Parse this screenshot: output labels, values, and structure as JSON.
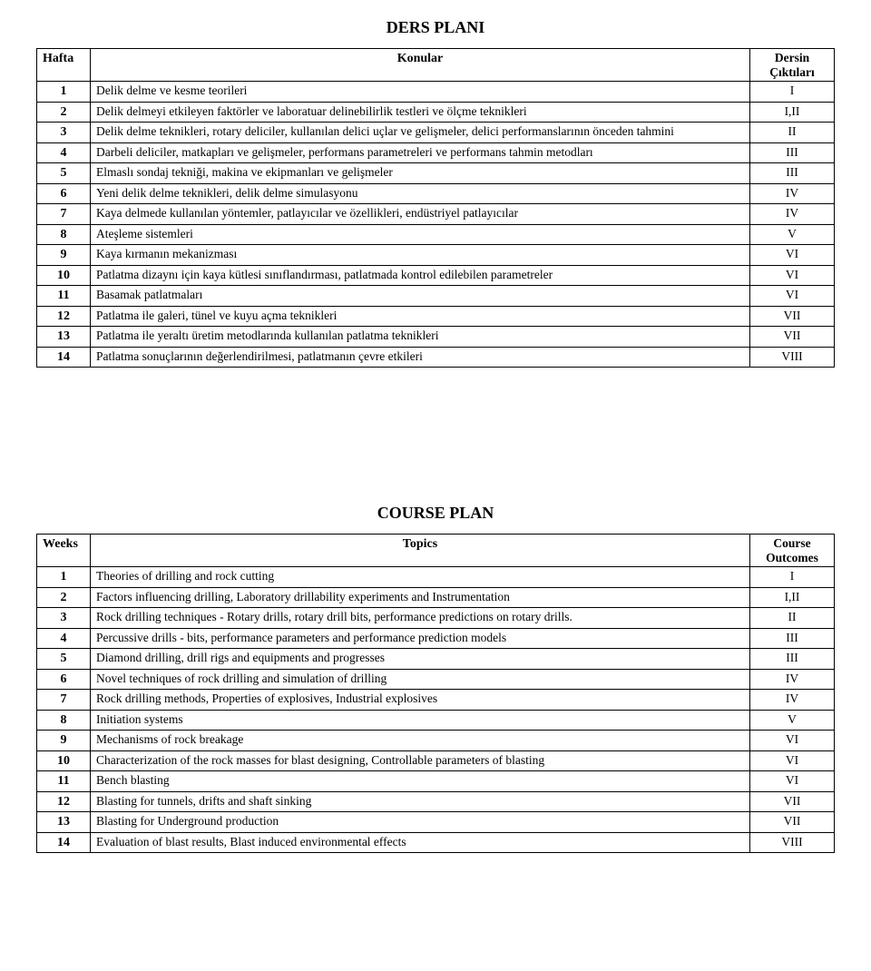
{
  "dersPlani": {
    "title": "DERS PLANI",
    "header": {
      "week": "Hafta",
      "topic": "Konular",
      "outcome_line1": "Dersin",
      "outcome_line2": "Çıktıları"
    },
    "rows": [
      {
        "n": "1",
        "topic": "Delik delme ve kesme teorileri",
        "out": "I"
      },
      {
        "n": "2",
        "topic": "Delik delmeyi etkileyen faktörler ve laboratuar delinebilirlik testleri ve ölçme teknikleri",
        "out": "I,II"
      },
      {
        "n": "3",
        "topic": "Delik delme teknikleri, rotary deliciler, kullanılan delici uçlar ve gelişmeler, delici performanslarının önceden tahmini",
        "out": "II"
      },
      {
        "n": "4",
        "topic": "Darbeli deliciler, matkapları ve gelişmeler, performans parametreleri ve performans tahmin metodları",
        "out": "III"
      },
      {
        "n": "5",
        "topic": "Elmaslı sondaj tekniği, makina ve ekipmanları ve gelişmeler",
        "out": "III"
      },
      {
        "n": "6",
        "topic": "Yeni delik delme teknikleri, delik delme simulasyonu",
        "out": "IV"
      },
      {
        "n": "7",
        "topic": "Kaya delmede kullanılan yöntemler, patlayıcılar ve özellikleri, endüstriyel patlayıcılar",
        "out": "IV"
      },
      {
        "n": "8",
        "topic": "Ateşleme sistemleri",
        "out": "V"
      },
      {
        "n": "9",
        "topic": "Kaya kırmanın mekanizması",
        "out": "VI"
      },
      {
        "n": "10",
        "topic": "Patlatma dizaynı için kaya kütlesi sınıflandırması, patlatmada kontrol edilebilen parametreler",
        "out": "VI"
      },
      {
        "n": "11",
        "topic": "Basamak patlatmaları",
        "out": "VI"
      },
      {
        "n": "12",
        "topic": "Patlatma ile galeri, tünel ve kuyu açma teknikleri",
        "out": "VII"
      },
      {
        "n": "13",
        "topic": "Patlatma ile yeraltı üretim metodlarında kullanılan patlatma teknikleri",
        "out": "VII"
      },
      {
        "n": "14",
        "topic": "Patlatma sonuçlarının değerlendirilmesi, patlatmanın çevre etkileri",
        "out": "VIII"
      }
    ]
  },
  "coursePlan": {
    "title": "COURSE PLAN",
    "header": {
      "week": "Weeks",
      "topic": "Topics",
      "outcome_line1": "Course",
      "outcome_line2": "Outcomes"
    },
    "rows": [
      {
        "n": "1",
        "topic": "Theories of drilling and rock cutting",
        "out": "I"
      },
      {
        "n": "2",
        "topic": "Factors influencing drilling, Laboratory drillability experiments and Instrumentation",
        "out": "I,II"
      },
      {
        "n": "3",
        "topic": "Rock drilling techniques - Rotary drills, rotary drill bits, performance predictions on rotary drills.",
        "out": "II"
      },
      {
        "n": "4",
        "topic": "Percussive drills - bits, performance parameters and performance prediction models",
        "out": "III"
      },
      {
        "n": "5",
        "topic": "Diamond drilling, drill rigs and equipments and progresses",
        "out": "III"
      },
      {
        "n": "6",
        "topic": "Novel techniques of rock drilling and simulation of drilling",
        "out": "IV"
      },
      {
        "n": "7",
        "topic": "Rock drilling methods, Properties of explosives, Industrial explosives",
        "out": "IV"
      },
      {
        "n": "8",
        "topic": "Initiation systems",
        "out": "V"
      },
      {
        "n": "9",
        "topic": "Mechanisms of rock breakage",
        "out": "VI"
      },
      {
        "n": "10",
        "topic": "Characterization of the rock masses for blast designing, Controllable parameters of blasting",
        "out": "VI"
      },
      {
        "n": "11",
        "topic": "Bench blasting",
        "out": "VI"
      },
      {
        "n": "12",
        "topic": "Blasting for tunnels, drifts and shaft sinking",
        "out": "VII"
      },
      {
        "n": "13",
        "topic": "Blasting for Underground production",
        "out": "VII"
      },
      {
        "n": "14",
        "topic": "Evaluation of blast results, Blast induced environmental effects",
        "out": "VIII"
      }
    ]
  },
  "style": {
    "background_color": "#ffffff",
    "text_color": "#000000",
    "border_color": "#000000",
    "font_family": "Times New Roman",
    "title_fontsize_pt": 14,
    "body_fontsize_pt": 10
  }
}
